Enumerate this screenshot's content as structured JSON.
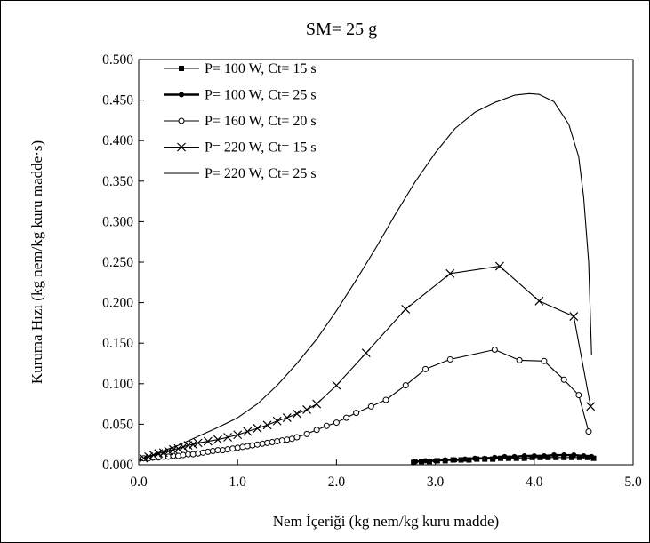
{
  "chart_data": {
    "type": "line",
    "title": "SM= 25 g",
    "xlabel": "Nem İçeriği (kg nem/kg kuru madde)",
    "ylabel": "Kuruma Hızı (kg nem/kg kuru madde·s)",
    "xlim": [
      0,
      5
    ],
    "ylim": [
      0,
      0.5
    ],
    "x_ticks": [
      "0.0",
      "1.0",
      "2.0",
      "3.0",
      "4.0",
      "5.0"
    ],
    "y_ticks": [
      "0.000",
      "0.050",
      "0.100",
      "0.150",
      "0.200",
      "0.250",
      "0.300",
      "0.350",
      "0.400",
      "0.450",
      "0.500"
    ],
    "grid": false,
    "legend_position": "top-left",
    "series": [
      {
        "name": "P= 100 W, Ct= 15 s",
        "marker": "square",
        "line": "solid",
        "x": [
          2.78,
          2.86,
          2.94,
          3.02,
          3.1,
          3.18,
          3.26,
          3.34,
          3.42,
          3.5,
          3.58,
          3.66,
          3.74,
          3.82,
          3.9,
          3.98,
          4.06,
          4.14,
          4.22,
          4.3,
          4.38,
          4.46,
          4.54,
          4.6
        ],
        "y": [
          0.003,
          0.004,
          0.004,
          0.005,
          0.005,
          0.006,
          0.006,
          0.006,
          0.007,
          0.007,
          0.007,
          0.008,
          0.008,
          0.008,
          0.008,
          0.009,
          0.009,
          0.009,
          0.009,
          0.009,
          0.009,
          0.009,
          0.009,
          0.008
        ]
      },
      {
        "name": "P= 100 W, Ct= 25 s",
        "marker": "filled-circle",
        "line": "solid-thick",
        "x": [
          2.8,
          2.9,
          3.0,
          3.1,
          3.2,
          3.3,
          3.4,
          3.5,
          3.6,
          3.7,
          3.8,
          3.9,
          4.0,
          4.1,
          4.2,
          4.3,
          4.4,
          4.5,
          4.58
        ],
        "y": [
          0.004,
          0.005,
          0.005,
          0.006,
          0.006,
          0.007,
          0.008,
          0.008,
          0.009,
          0.01,
          0.01,
          0.011,
          0.011,
          0.011,
          0.012,
          0.012,
          0.012,
          0.011,
          0.01
        ]
      },
      {
        "name": "P= 160 W, Ct= 20 s",
        "marker": "open-circle",
        "line": "solid",
        "x": [
          0.05,
          0.1,
          0.15,
          0.2,
          0.25,
          0.3,
          0.35,
          0.4,
          0.45,
          0.5,
          0.55,
          0.6,
          0.65,
          0.7,
          0.75,
          0.8,
          0.85,
          0.9,
          0.95,
          1.0,
          1.05,
          1.1,
          1.15,
          1.2,
          1.25,
          1.3,
          1.35,
          1.4,
          1.45,
          1.5,
          1.55,
          1.6,
          1.7,
          1.8,
          1.9,
          2.0,
          2.1,
          2.2,
          2.35,
          2.5,
          2.7,
          2.9,
          3.15,
          3.6,
          3.85,
          4.1,
          4.3,
          4.45,
          4.55
        ],
        "y": [
          0.008,
          0.008,
          0.009,
          0.009,
          0.01,
          0.01,
          0.011,
          0.011,
          0.012,
          0.013,
          0.013,
          0.014,
          0.015,
          0.016,
          0.017,
          0.018,
          0.018,
          0.019,
          0.02,
          0.021,
          0.022,
          0.023,
          0.024,
          0.025,
          0.026,
          0.027,
          0.028,
          0.029,
          0.03,
          0.031,
          0.032,
          0.034,
          0.038,
          0.043,
          0.048,
          0.052,
          0.058,
          0.064,
          0.072,
          0.08,
          0.098,
          0.118,
          0.13,
          0.142,
          0.129,
          0.128,
          0.105,
          0.086,
          0.041
        ]
      },
      {
        "name": "P= 220 W, Ct= 15 s",
        "marker": "x",
        "line": "solid",
        "x": [
          0.05,
          0.1,
          0.15,
          0.2,
          0.25,
          0.3,
          0.35,
          0.4,
          0.45,
          0.5,
          0.55,
          0.6,
          0.7,
          0.8,
          0.9,
          1.0,
          1.1,
          1.2,
          1.3,
          1.4,
          1.5,
          1.6,
          1.7,
          1.8,
          2.0,
          2.3,
          2.7,
          3.15,
          3.65,
          4.05,
          4.4,
          4.57
        ],
        "y": [
          0.008,
          0.01,
          0.012,
          0.014,
          0.015,
          0.017,
          0.019,
          0.02,
          0.022,
          0.024,
          0.025,
          0.027,
          0.029,
          0.031,
          0.034,
          0.037,
          0.041,
          0.045,
          0.049,
          0.054,
          0.058,
          0.063,
          0.068,
          0.075,
          0.098,
          0.138,
          0.192,
          0.236,
          0.245,
          0.202,
          0.183,
          0.072
        ]
      },
      {
        "name": "P= 220 W, Ct= 25 s",
        "marker": "none",
        "line": "solid",
        "x": [
          0.0,
          0.2,
          0.4,
          0.6,
          0.8,
          1.0,
          1.2,
          1.4,
          1.6,
          1.8,
          2.0,
          2.2,
          2.4,
          2.6,
          2.8,
          3.0,
          3.2,
          3.4,
          3.6,
          3.8,
          3.95,
          4.05,
          4.2,
          4.35,
          4.45,
          4.5,
          4.55,
          4.58
        ],
        "y": [
          0.005,
          0.015,
          0.024,
          0.035,
          0.046,
          0.058,
          0.075,
          0.098,
          0.125,
          0.155,
          0.19,
          0.228,
          0.268,
          0.31,
          0.35,
          0.385,
          0.415,
          0.435,
          0.447,
          0.456,
          0.458,
          0.457,
          0.448,
          0.42,
          0.38,
          0.33,
          0.25,
          0.135
        ]
      }
    ]
  }
}
